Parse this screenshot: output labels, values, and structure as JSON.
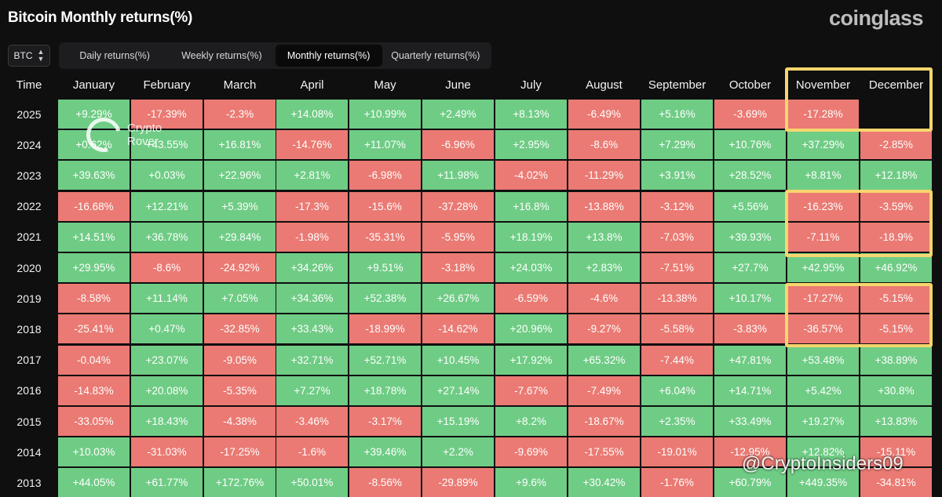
{
  "title": "Bitcoin Monthly returns(%)",
  "brand": "coinglass",
  "asset_selector": {
    "value": "BTC"
  },
  "tabs": [
    {
      "label": "Daily returns(%)",
      "active": false
    },
    {
      "label": "Weekly returns(%)",
      "active": false
    },
    {
      "label": "Monthly returns(%)",
      "active": true
    },
    {
      "label": "Quarterly returns(%)",
      "active": false
    }
  ],
  "table": {
    "columns": [
      "Time",
      "January",
      "February",
      "March",
      "April",
      "May",
      "June",
      "July",
      "August",
      "September",
      "October",
      "November",
      "December"
    ],
    "rows": [
      {
        "year": "2025",
        "values": [
          "+9.29%",
          "-17.39%",
          "-2.3%",
          "+14.08%",
          "+10.99%",
          "+2.49%",
          "+8.13%",
          "-6.49%",
          "+5.16%",
          "-3.69%",
          "-17.28%",
          ""
        ]
      },
      {
        "year": "2024",
        "values": [
          "+0.62%",
          "+43.55%",
          "+16.81%",
          "-14.76%",
          "+11.07%",
          "-6.96%",
          "+2.95%",
          "-8.6%",
          "+7.29%",
          "+10.76%",
          "+37.29%",
          "-2.85%"
        ]
      },
      {
        "year": "2023",
        "values": [
          "+39.63%",
          "+0.03%",
          "+22.96%",
          "+2.81%",
          "-6.98%",
          "+11.98%",
          "-4.02%",
          "-11.29%",
          "+3.91%",
          "+28.52%",
          "+8.81%",
          "+12.18%"
        ]
      },
      {
        "year": "2022",
        "values": [
          "-16.68%",
          "+12.21%",
          "+5.39%",
          "-17.3%",
          "-15.6%",
          "-37.28%",
          "+16.8%",
          "-13.88%",
          "-3.12%",
          "+5.56%",
          "-16.23%",
          "-3.59%"
        ]
      },
      {
        "year": "2021",
        "values": [
          "+14.51%",
          "+36.78%",
          "+29.84%",
          "-1.98%",
          "-35.31%",
          "-5.95%",
          "+18.19%",
          "+13.8%",
          "-7.03%",
          "+39.93%",
          "-7.11%",
          "-18.9%"
        ]
      },
      {
        "year": "2020",
        "values": [
          "+29.95%",
          "-8.6%",
          "-24.92%",
          "+34.26%",
          "+9.51%",
          "-3.18%",
          "+24.03%",
          "+2.83%",
          "-7.51%",
          "+27.7%",
          "+42.95%",
          "+46.92%"
        ]
      },
      {
        "year": "2019",
        "values": [
          "-8.58%",
          "+11.14%",
          "+7.05%",
          "+34.36%",
          "+52.38%",
          "+26.67%",
          "-6.59%",
          "-4.6%",
          "-13.38%",
          "+10.17%",
          "-17.27%",
          "-5.15%"
        ]
      },
      {
        "year": "2018",
        "values": [
          "-25.41%",
          "+0.47%",
          "-32.85%",
          "+33.43%",
          "-18.99%",
          "-14.62%",
          "+20.96%",
          "-9.27%",
          "-5.58%",
          "-3.83%",
          "-36.57%",
          "-5.15%"
        ]
      },
      {
        "year": "2017",
        "values": [
          "-0.04%",
          "+23.07%",
          "-9.05%",
          "+32.71%",
          "+52.71%",
          "+10.45%",
          "+17.92%",
          "+65.32%",
          "-7.44%",
          "+47.81%",
          "+53.48%",
          "+38.89%"
        ]
      },
      {
        "year": "2016",
        "values": [
          "-14.83%",
          "+20.08%",
          "-5.35%",
          "+7.27%",
          "+18.78%",
          "+27.14%",
          "-7.67%",
          "-7.49%",
          "+6.04%",
          "+14.71%",
          "+5.42%",
          "+30.8%"
        ]
      },
      {
        "year": "2015",
        "values": [
          "-33.05%",
          "+18.43%",
          "-4.38%",
          "-3.46%",
          "-3.17%",
          "+15.19%",
          "+8.2%",
          "-18.67%",
          "+2.35%",
          "+33.49%",
          "+19.27%",
          "+13.83%"
        ]
      },
      {
        "year": "2014",
        "values": [
          "+10.03%",
          "-31.03%",
          "-17.25%",
          "-1.6%",
          "+39.46%",
          "+2.2%",
          "-9.69%",
          "-17.55%",
          "-19.01%",
          "-12.95%",
          "+12.82%",
          "-15.11%"
        ]
      },
      {
        "year": "2013",
        "values": [
          "+44.05%",
          "+61.77%",
          "+172.76%",
          "+50.01%",
          "-8.56%",
          "-29.89%",
          "+9.6%",
          "+30.42%",
          "-1.76%",
          "+60.79%",
          "+449.35%",
          "-34.81%"
        ]
      }
    ]
  },
  "colors": {
    "positive": "#6fcc85",
    "negative": "#ea7a73",
    "highlight": "#f6d66d"
  },
  "watermarks": {
    "logo_text": "Crypto Rover",
    "handle": "@CryptoInsiders09"
  }
}
